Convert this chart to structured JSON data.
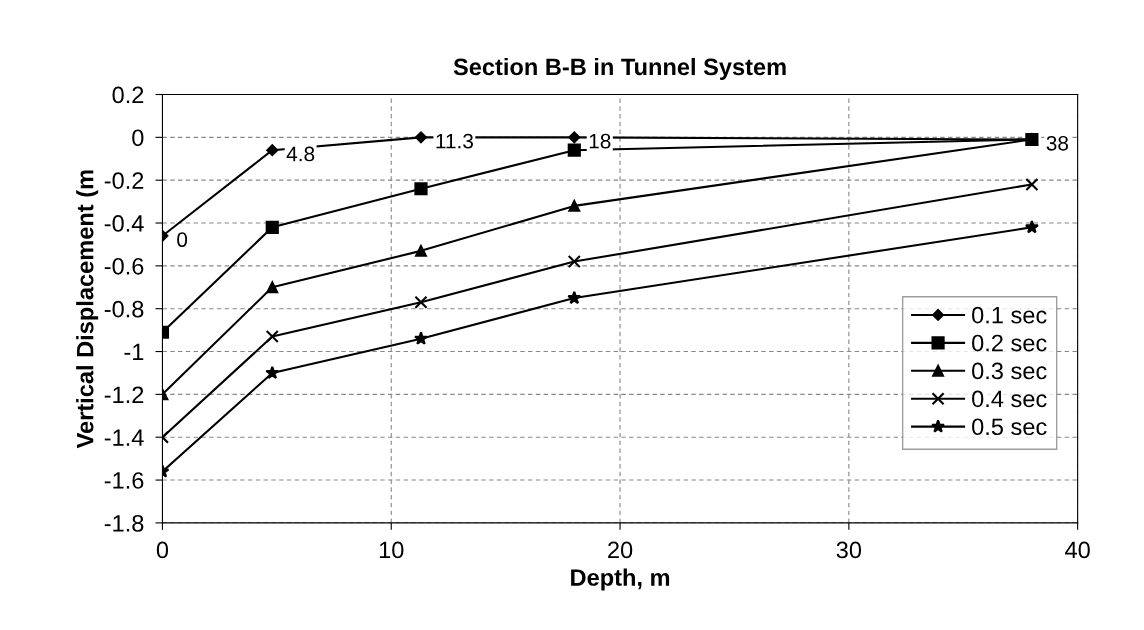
{
  "chart_data": {
    "type": "line",
    "title": "Section B-B in Tunnel System",
    "xlabel": "Depth, m",
    "ylabel": "Vertical Displacement (m",
    "x": [
      0,
      4.8,
      11.3,
      18,
      38
    ],
    "series": [
      {
        "name": "0.1 sec",
        "color": "#000000",
        "marker": "diamond",
        "values": [
          -0.46,
          -0.06,
          0,
          0,
          -0.01
        ]
      },
      {
        "name": "0.2 sec",
        "color": "#000000",
        "marker": "square",
        "values": [
          -0.91,
          -0.42,
          -0.24,
          -0.06,
          -0.01
        ]
      },
      {
        "name": "0.3 sec",
        "color": "#000000",
        "marker": "triangle",
        "values": [
          -1.2,
          -0.7,
          -0.53,
          -0.32,
          -0.01
        ]
      },
      {
        "name": "0.4 sec",
        "color": "#000000",
        "marker": "cross",
        "values": [
          -1.4,
          -0.93,
          -0.77,
          -0.58,
          -0.22
        ]
      },
      {
        "name": "0.5 sec",
        "color": "#000000",
        "marker": "star",
        "values": [
          -1.56,
          -1.1,
          -0.94,
          -0.75,
          -0.42
        ]
      }
    ],
    "annotations": [
      {
        "text": "0",
        "x": 0,
        "y": -0.46
      },
      {
        "text": "4.8",
        "x": 4.8,
        "y": -0.06
      },
      {
        "text": "11.3",
        "x": 11.3,
        "y": 0
      },
      {
        "text": "18",
        "x": 18,
        "y": 0
      },
      {
        "text": "38",
        "x": 38,
        "y": -0.01
      }
    ],
    "xlim": [
      0,
      40
    ],
    "xticks": [
      0,
      10,
      20,
      30,
      40
    ],
    "ylim": [
      -1.8,
      0.2
    ],
    "yticks": [
      0.2,
      0,
      -0.2,
      -0.4,
      -0.6,
      -0.8,
      -1,
      -1.2,
      -1.4,
      -1.6,
      -1.8
    ],
    "grid": true,
    "legend": "right",
    "line_style": "solid"
  }
}
